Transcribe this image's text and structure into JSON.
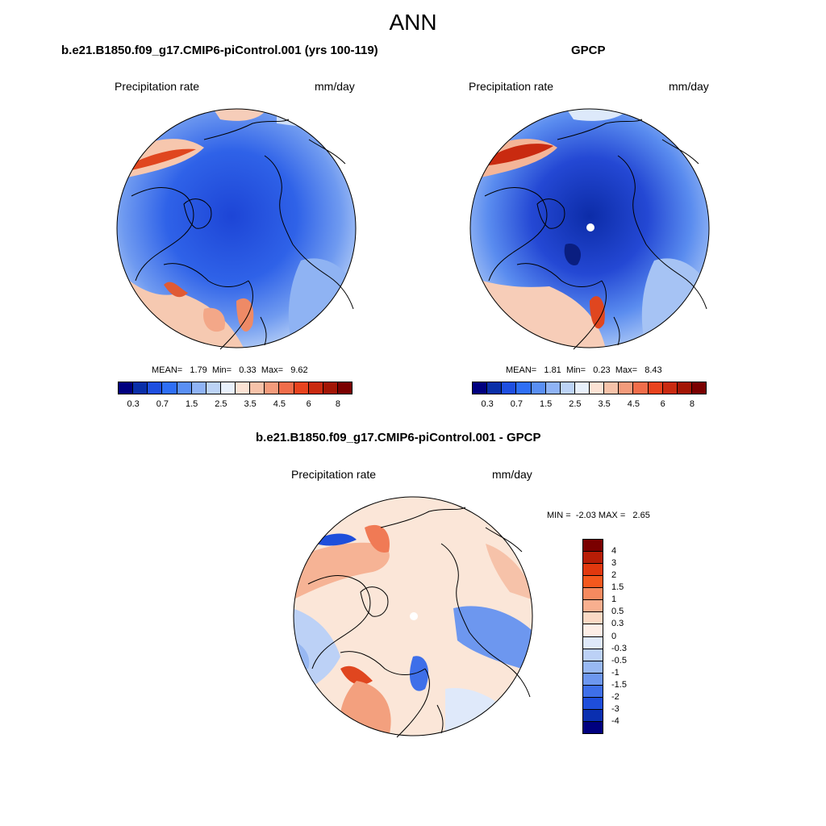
{
  "figure": {
    "title": "ANN"
  },
  "panels": [
    {
      "title": "b.e21.B1850.f09_g17.CMIP6-piControl.001 (yrs 100-119)",
      "left_label": "Precipitation rate",
      "right_label": "mm/day",
      "stats": {
        "mean_label": "MEAN=",
        "mean": "1.79",
        "min_label": "Min=",
        "min": "0.33",
        "max_label": "Max=",
        "max": "9.62"
      },
      "map": {
        "center_dot": false
      }
    },
    {
      "title": "GPCP",
      "left_label": "Precipitation rate",
      "right_label": "mm/day",
      "stats": {
        "mean_label": "MEAN=",
        "mean": "1.81",
        "min_label": "Min=",
        "min": "0.23",
        "max_label": "Max=",
        "max": "8.43"
      },
      "map": {
        "center_dot": true
      }
    },
    {
      "title": "b.e21.B1850.f09_g17.CMIP6-piControl.001 - GPCP",
      "left_label": "Precipitation rate",
      "right_label": "mm/day",
      "stats": {
        "min_label": "MIN =",
        "min": "-2.03",
        "max_label": "MAX =",
        "max": "2.65"
      },
      "map": {
        "center_dot": true
      }
    }
  ],
  "colorbars": {
    "absolute": {
      "colors": [
        "#00007f",
        "#0a2fa8",
        "#1f4fe0",
        "#2f6ff5",
        "#5a8ff3",
        "#8fb3f5",
        "#bcd3f6",
        "#e8f0fb",
        "#fbe2d4",
        "#f6c2a9",
        "#f39b7b",
        "#f06d4a",
        "#e8431e",
        "#c92a10",
        "#a31505",
        "#7a0000"
      ],
      "tick_labels": [
        "0.3",
        "0.7",
        "1.5",
        "2.5",
        "3.5",
        "4.5",
        "6",
        "8"
      ]
    },
    "difference": {
      "colors": [
        "#7a0000",
        "#b71d06",
        "#e1380e",
        "#f4581d",
        "#f58a5f",
        "#f8af8f",
        "#fbd9c4",
        "#fdeee6",
        "#dfe9fa",
        "#bcd1f6",
        "#98b8f2",
        "#6d97ef",
        "#3e6fe9",
        "#1e4edb",
        "#0a2fb0",
        "#00007f"
      ],
      "tick_labels": [
        "4",
        "3",
        "2",
        "1.5",
        "1",
        "0.5",
        "0.3",
        "0",
        "-0.3",
        "-0.5",
        "-1",
        "-1.5",
        "-2",
        "-3",
        "-4"
      ]
    }
  },
  "colors": {
    "map_base_abs_1": "#3d6fe6",
    "map_base_abs_2": "#2e55d8",
    "map_base_diff": "#fbe6d8"
  }
}
